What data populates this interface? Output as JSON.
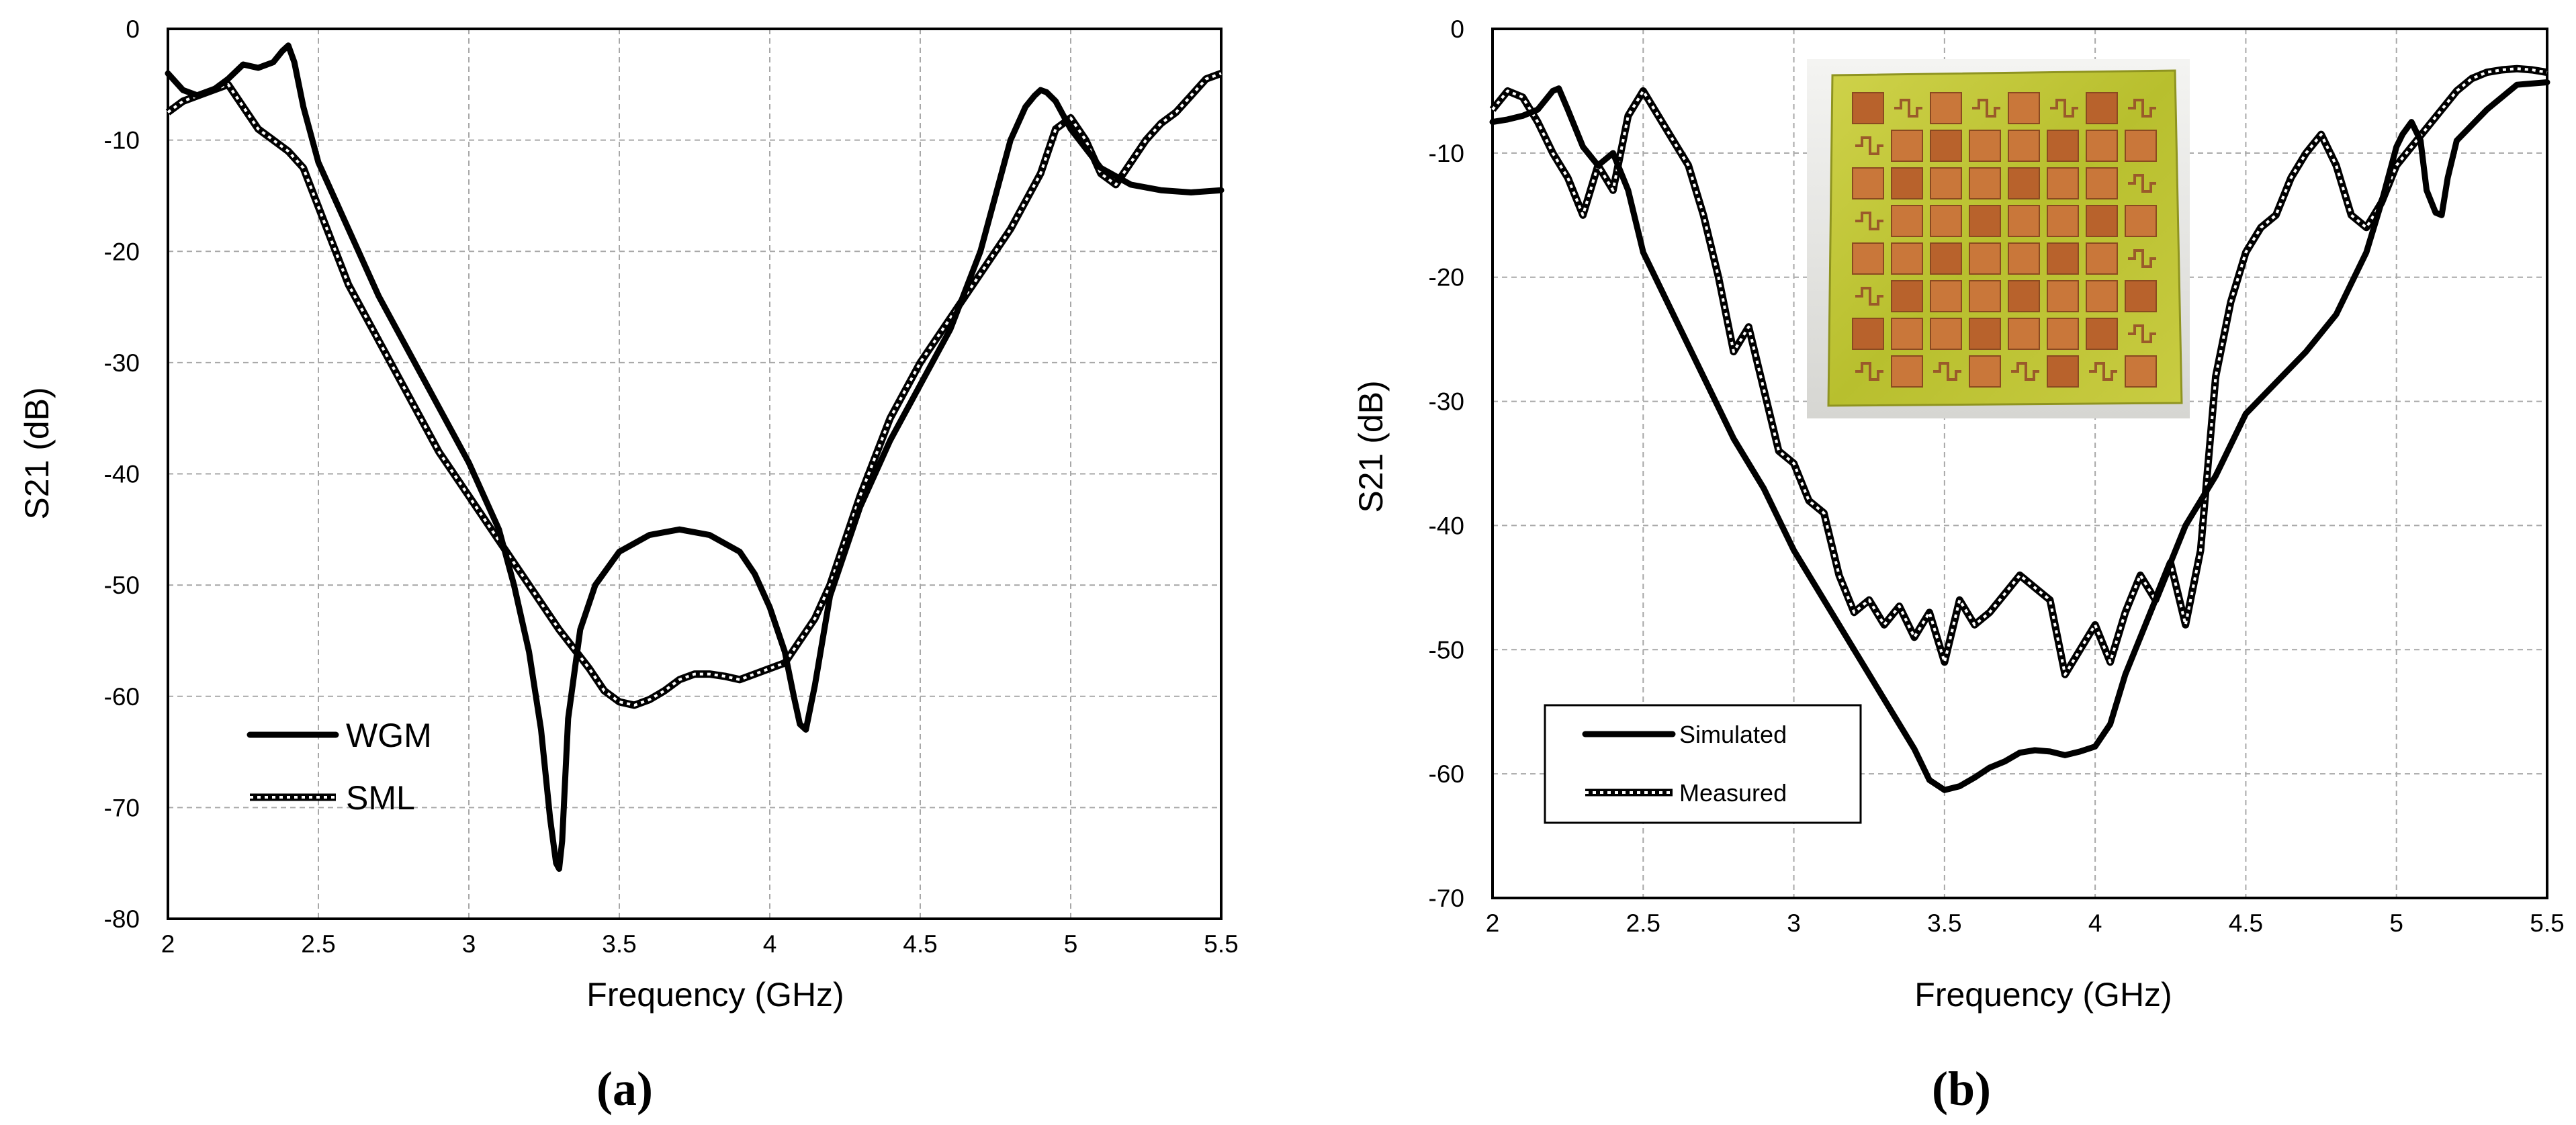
{
  "chart_data": [
    {
      "panel_label": "(a)",
      "type": "line",
      "xlabel": "Frequency (GHz)",
      "ylabel": "S21 (dB)",
      "xlim": [
        2,
        5.5
      ],
      "ylim": [
        -80,
        0
      ],
      "xticks": [
        2,
        2.5,
        3,
        3.5,
        4,
        4.5,
        5,
        5.5
      ],
      "yticks": [
        0,
        -10,
        -20,
        -30,
        -40,
        -50,
        -60,
        -70,
        -80
      ],
      "x_tick_labels": [
        "2",
        "2.5",
        "3",
        "3.5",
        "4",
        "4.5",
        "5",
        "5.5"
      ],
      "y_tick_labels": [
        "0",
        "-10",
        "-20",
        "-30",
        "-40",
        "-50",
        "-60",
        "-70",
        "-80"
      ],
      "grid": true,
      "legend_position": "bottom-left",
      "series": [
        {
          "name": "WGM",
          "style": "solid",
          "x": [
            2.0,
            2.05,
            2.1,
            2.15,
            2.2,
            2.25,
            2.3,
            2.35,
            2.38,
            2.4,
            2.42,
            2.45,
            2.5,
            2.6,
            2.7,
            2.8,
            2.9,
            3.0,
            3.1,
            3.15,
            3.2,
            3.24,
            3.27,
            3.29,
            3.3,
            3.31,
            3.33,
            3.37,
            3.42,
            3.5,
            3.6,
            3.7,
            3.8,
            3.9,
            3.95,
            4.0,
            4.05,
            4.08,
            4.1,
            4.12,
            4.15,
            4.2,
            4.3,
            4.4,
            4.5,
            4.6,
            4.7,
            4.75,
            4.8,
            4.85,
            4.88,
            4.9,
            4.92,
            4.95,
            5.0,
            5.1,
            5.2,
            5.3,
            5.4,
            5.5
          ],
          "y": [
            -4,
            -5.5,
            -6,
            -5.5,
            -4.5,
            -3.2,
            -3.5,
            -3,
            -2,
            -1.5,
            -3,
            -7,
            -12,
            -18,
            -24,
            -29,
            -34,
            -39,
            -45,
            -50,
            -56,
            -63,
            -71,
            -75,
            -75.5,
            -73,
            -62,
            -54,
            -50,
            -47,
            -45.5,
            -45,
            -45.5,
            -47,
            -49,
            -52,
            -56,
            -60,
            -62.5,
            -63,
            -59,
            -51,
            -43,
            -37,
            -32,
            -27,
            -20,
            -15,
            -10,
            -7,
            -6,
            -5.5,
            -5.7,
            -6.5,
            -9,
            -12.5,
            -14,
            -14.5,
            -14.7,
            -14.5
          ]
        },
        {
          "name": "SML",
          "style": "dotted",
          "x": [
            2.0,
            2.05,
            2.1,
            2.15,
            2.2,
            2.25,
            2.3,
            2.35,
            2.4,
            2.45,
            2.5,
            2.6,
            2.7,
            2.8,
            2.9,
            3.0,
            3.1,
            3.2,
            3.3,
            3.4,
            3.45,
            3.5,
            3.55,
            3.6,
            3.65,
            3.7,
            3.75,
            3.8,
            3.85,
            3.9,
            3.95,
            4.0,
            4.05,
            4.1,
            4.15,
            4.2,
            4.3,
            4.4,
            4.5,
            4.6,
            4.7,
            4.8,
            4.9,
            4.95,
            5.0,
            5.05,
            5.1,
            5.15,
            5.2,
            5.25,
            5.3,
            5.35,
            5.4,
            5.45,
            5.5
          ],
          "y": [
            -7.5,
            -6.5,
            -6,
            -5.5,
            -5,
            -7,
            -9,
            -10,
            -11,
            -12.5,
            -16,
            -23,
            -28,
            -33,
            -38,
            -42,
            -46,
            -50,
            -54,
            -57.5,
            -59.5,
            -60.5,
            -60.8,
            -60.3,
            -59.5,
            -58.5,
            -58,
            -58,
            -58.2,
            -58.5,
            -58,
            -57.5,
            -57,
            -55,
            -53,
            -50,
            -42,
            -35,
            -30,
            -26,
            -22,
            -18,
            -13,
            -9,
            -8,
            -10,
            -13,
            -14,
            -12,
            -10,
            -8.5,
            -7.5,
            -6,
            -4.5,
            -4
          ]
        }
      ]
    },
    {
      "panel_label": "(b)",
      "type": "line",
      "xlabel": "Frequency (GHz)",
      "ylabel": "S21 (dB)",
      "xlim": [
        2,
        5.5
      ],
      "ylim": [
        -70,
        0
      ],
      "xticks": [
        2,
        2.5,
        3,
        3.5,
        4,
        4.5,
        5,
        5.5
      ],
      "yticks": [
        0,
        -10,
        -20,
        -30,
        -40,
        -50,
        -60,
        -70
      ],
      "x_tick_labels": [
        "2",
        "2.5",
        "3",
        "3.5",
        "4",
        "4.5",
        "5",
        "5.5"
      ],
      "y_tick_labels": [
        "0",
        "-10",
        "-20",
        "-30",
        "-40",
        "-50",
        "-60",
        "-70"
      ],
      "grid": true,
      "legend_position": "bottom-left",
      "inset": "photo-of-fabricated-board",
      "series": [
        {
          "name": "Simulated",
          "style": "solid",
          "x": [
            2.0,
            2.05,
            2.1,
            2.15,
            2.2,
            2.22,
            2.25,
            2.3,
            2.35,
            2.4,
            2.45,
            2.5,
            2.6,
            2.7,
            2.8,
            2.9,
            3.0,
            3.1,
            3.2,
            3.3,
            3.4,
            3.45,
            3.5,
            3.55,
            3.6,
            3.65,
            3.7,
            3.75,
            3.8,
            3.85,
            3.9,
            3.95,
            4.0,
            4.05,
            4.1,
            4.2,
            4.3,
            4.4,
            4.5,
            4.6,
            4.7,
            4.8,
            4.9,
            4.95,
            5.0,
            5.02,
            5.05,
            5.08,
            5.1,
            5.13,
            5.15,
            5.17,
            5.2,
            5.3,
            5.4,
            5.5
          ],
          "y": [
            -7.5,
            -7.3,
            -7,
            -6.5,
            -5,
            -4.8,
            -6.5,
            -9.5,
            -11,
            -10,
            -13,
            -18,
            -23,
            -28,
            -33,
            -37,
            -42,
            -46,
            -50,
            -54,
            -58,
            -60.5,
            -61.3,
            -61,
            -60.3,
            -59.5,
            -59,
            -58.3,
            -58.1,
            -58.2,
            -58.5,
            -58.2,
            -57.8,
            -56,
            -52,
            -46,
            -40,
            -36,
            -31,
            -28.5,
            -26,
            -23,
            -18,
            -14,
            -9.5,
            -8.5,
            -7.5,
            -9,
            -13,
            -14.8,
            -15,
            -12,
            -9,
            -6.5,
            -4.5,
            -4.3
          ]
        },
        {
          "name": "Measured",
          "style": "dotted",
          "x": [
            2.0,
            2.05,
            2.1,
            2.15,
            2.2,
            2.25,
            2.3,
            2.35,
            2.4,
            2.45,
            2.5,
            2.55,
            2.6,
            2.65,
            2.7,
            2.75,
            2.8,
            2.85,
            2.9,
            2.95,
            3.0,
            3.05,
            3.1,
            3.15,
            3.2,
            3.25,
            3.3,
            3.35,
            3.4,
            3.45,
            3.5,
            3.55,
            3.6,
            3.65,
            3.7,
            3.75,
            3.8,
            3.85,
            3.9,
            3.95,
            4.0,
            4.05,
            4.1,
            4.15,
            4.2,
            4.25,
            4.3,
            4.35,
            4.4,
            4.45,
            4.5,
            4.55,
            4.6,
            4.65,
            4.7,
            4.75,
            4.8,
            4.85,
            4.9,
            4.95,
            5.0,
            5.05,
            5.1,
            5.15,
            5.2,
            5.25,
            5.3,
            5.35,
            5.4,
            5.45,
            5.5
          ],
          "y": [
            -6.5,
            -5,
            -5.5,
            -7.5,
            -10,
            -12,
            -15,
            -11,
            -13,
            -7,
            -5,
            -7,
            -9,
            -11,
            -15,
            -20,
            -26,
            -24,
            -29,
            -34,
            -35,
            -38,
            -39,
            -44,
            -47,
            -46,
            -48,
            -46.5,
            -49,
            -47,
            -51,
            -46,
            -48,
            -47,
            -45.5,
            -44,
            -45,
            -46,
            -52,
            -50,
            -48,
            -51,
            -47,
            -44,
            -46,
            -43,
            -48,
            -42,
            -28,
            -22,
            -18,
            -16,
            -15,
            -12,
            -10,
            -8.5,
            -11,
            -15,
            -16,
            -14,
            -11,
            -9.5,
            -8,
            -6.5,
            -5,
            -4,
            -3.5,
            -3.3,
            -3.2,
            -3.3,
            -3.5
          ]
        }
      ]
    }
  ]
}
